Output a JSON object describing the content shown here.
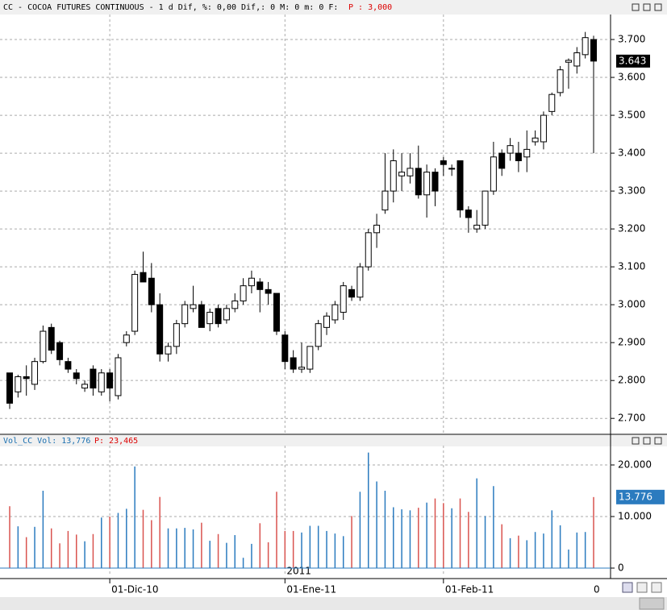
{
  "header": {
    "title": "CC - COCOA FUTURES CONTINUOUS -  1 d Dif, %: 0,00 Dif,: 0 M: 0 m: 0 F:",
    "p_label": "P : 3,000"
  },
  "chart_data": [
    {
      "type": "candlestick",
      "categories": [
        null,
        null,
        null,
        null,
        null,
        null,
        null,
        null,
        null,
        null,
        null,
        null,
        "01-Dic-10",
        null,
        null,
        null,
        null,
        null,
        null,
        null,
        null,
        null,
        null,
        null,
        null,
        null,
        null,
        null,
        null,
        null,
        null,
        null,
        null,
        "01-Ene-11",
        null,
        null,
        null,
        null,
        null,
        null,
        null,
        null,
        null,
        null,
        null,
        null,
        null,
        null,
        null,
        null,
        null,
        null,
        "01-Feb-11",
        null,
        null,
        null,
        null,
        null,
        null,
        null,
        null,
        null,
        null,
        null,
        null,
        null,
        null,
        null,
        null,
        null,
        null
      ],
      "year_label": "2011",
      "axis_end_label": "0",
      "open": [
        2820,
        2770,
        2810,
        2790,
        2850,
        2940,
        2900,
        2850,
        2820,
        2780,
        2830,
        2770,
        2820,
        2760,
        2900,
        2930,
        3085,
        3070,
        3000,
        2870,
        2890,
        2950,
        2990,
        3000,
        2950,
        2990,
        2960,
        2990,
        3010,
        3050,
        3060,
        3040,
        3030,
        2920,
        2860,
        2830,
        2830,
        2890,
        2940,
        2960,
        2980,
        3040,
        3020,
        3100,
        3190,
        3250,
        3300,
        3340,
        3340,
        3360,
        3290,
        3350,
        3380,
        3360,
        3380,
        3250,
        3200,
        3210,
        3300,
        3400,
        3400,
        3400,
        3390,
        3430,
        3430,
        3510,
        3560,
        3640,
        3630,
        3660,
        3700
      ],
      "high": [
        2820,
        2815,
        2840,
        2860,
        2945,
        2950,
        2905,
        2860,
        2830,
        2800,
        2840,
        2830,
        2830,
        2870,
        2930,
        3090,
        3140,
        3110,
        3030,
        2900,
        2960,
        3010,
        3050,
        3010,
        2990,
        3000,
        3000,
        3030,
        3070,
        3090,
        3070,
        3060,
        3030,
        2930,
        2880,
        2900,
        2890,
        2960,
        2980,
        3010,
        3060,
        3050,
        3110,
        3200,
        3240,
        3400,
        3410,
        3400,
        3400,
        3420,
        3370,
        3360,
        3390,
        3370,
        3380,
        3260,
        3250,
        3300,
        3430,
        3410,
        3440,
        3430,
        3460,
        3460,
        3510,
        3560,
        3630,
        3650,
        3680,
        3720,
        3710
      ],
      "low": [
        2725,
        2755,
        2760,
        2775,
        2845,
        2870,
        2840,
        2820,
        2790,
        2770,
        2760,
        2760,
        2745,
        2750,
        2890,
        2920,
        3060,
        2980,
        2850,
        2850,
        2870,
        2940,
        2980,
        2940,
        2930,
        2940,
        2950,
        2980,
        3000,
        3030,
        2980,
        3000,
        2920,
        2830,
        2820,
        2820,
        2820,
        2880,
        2920,
        2950,
        2960,
        3010,
        3010,
        3090,
        3150,
        3240,
        3270,
        3300,
        3320,
        3280,
        3230,
        3260,
        3340,
        3340,
        3230,
        3190,
        3190,
        3200,
        3290,
        3340,
        3380,
        3350,
        3350,
        3420,
        3410,
        3500,
        3550,
        3570,
        3610,
        3650,
        3400
      ],
      "close": [
        2740,
        2810,
        2805,
        2850,
        2930,
        2880,
        2855,
        2830,
        2805,
        2790,
        2780,
        2820,
        2780,
        2860,
        2920,
        3080,
        3060,
        3000,
        2870,
        2890,
        2950,
        3000,
        3000,
        2940,
        2980,
        2950,
        2990,
        3010,
        3050,
        3070,
        3040,
        3030,
        2930,
        2850,
        2830,
        2835,
        2890,
        2950,
        2970,
        3000,
        3050,
        3020,
        3100,
        3190,
        3210,
        3300,
        3380,
        3350,
        3360,
        3290,
        3350,
        3300,
        3370,
        3360,
        3250,
        3230,
        3210,
        3300,
        3390,
        3360,
        3420,
        3380,
        3410,
        3440,
        3500,
        3555,
        3620,
        3645,
        3665,
        3705,
        3643
      ],
      "last_label": "3.643",
      "up_color": "#ffffff",
      "down_color": "#000000",
      "ylim": [
        2660,
        3766
      ],
      "yticks": [
        {
          "value": 2700,
          "label": "2.700"
        },
        {
          "value": 2800,
          "label": "2.800"
        },
        {
          "value": 2900,
          "label": "2.900"
        },
        {
          "value": 3000,
          "label": "3.000"
        },
        {
          "value": 3100,
          "label": "3.100"
        },
        {
          "value": 3200,
          "label": "3.200"
        },
        {
          "value": 3300,
          "label": "3.300"
        },
        {
          "value": 3400,
          "label": "3.400"
        },
        {
          "value": 3500,
          "label": "3.500"
        },
        {
          "value": 3600,
          "label": "3.600"
        },
        {
          "value": 3700,
          "label": "3.700"
        }
      ],
      "grid": true
    },
    {
      "type": "bar",
      "title": "Vol_CC Vol: 13,776",
      "p_label": "P: 23,465",
      "values": [
        12000,
        8100,
        6000,
        8000,
        15000,
        7700,
        4800,
        7200,
        6500,
        5200,
        6600,
        9800,
        10000,
        10700,
        11500,
        19700,
        11300,
        9300,
        13800,
        7700,
        7700,
        7800,
        7500,
        8800,
        5300,
        6600,
        4900,
        6400,
        2000,
        4700,
        8700,
        5000,
        14800,
        7200,
        7200,
        6900,
        8200,
        8200,
        7200,
        6700,
        6200,
        10100,
        14800,
        22400,
        16800,
        15000,
        11800,
        11400,
        11200,
        11700,
        12700,
        13500,
        12600,
        11600,
        13500,
        10900,
        17400,
        10100,
        15900,
        8500,
        5800,
        6300,
        5400,
        7000,
        6700,
        11200,
        8300,
        3600,
        6900,
        7000,
        13776
      ],
      "last_label": "13.776",
      "up_color": "#2b7bbf",
      "down_color": "#d9534f",
      "ylim": [
        -1250,
        23750
      ],
      "yticks": [
        0,
        {
          "value": 10000,
          "label": "10.000"
        },
        {
          "value": 20000,
          "label": "20.000"
        }
      ],
      "grid": true
    }
  ]
}
